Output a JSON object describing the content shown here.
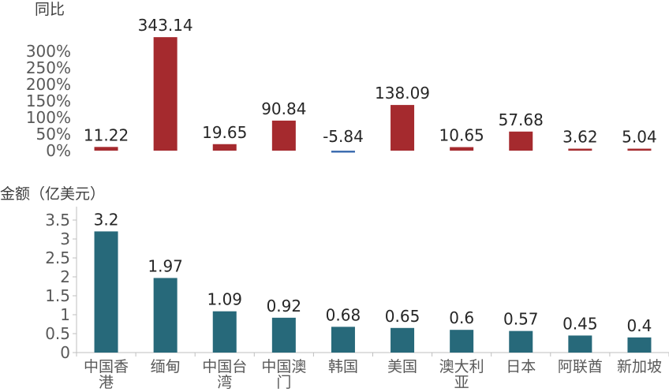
{
  "chart_data": [
    {
      "type": "bar",
      "title": "同比",
      "ylabel": "同比",
      "ylim": [
        0,
        300
      ],
      "yticks": [
        "0%",
        "50%",
        "100%",
        "150%",
        "200%",
        "250%",
        "300%"
      ],
      "ytick_values": [
        0,
        50,
        100,
        150,
        200,
        250,
        300
      ],
      "categories": [
        "中国香港",
        "缅甸",
        "中国台湾",
        "中国澳门",
        "韩国",
        "美国",
        "澳大利亚",
        "日本",
        "阿联酋",
        "新加坡"
      ],
      "values": [
        11.22,
        343.14,
        19.65,
        90.84,
        -5.84,
        138.09,
        10.65,
        57.68,
        3.62,
        5.04
      ],
      "value_labels": [
        "11.22",
        "343.14",
        "19.65",
        "90.84",
        "-5.84",
        "138.09",
        "10.65",
        "57.68",
        "3.62",
        "5.04"
      ],
      "colors": {
        "positive": "#a52a2e",
        "negative": "#3f6eb0"
      },
      "grid": false
    },
    {
      "type": "bar",
      "title": "金额（亿美元）",
      "ylabel": "金额（亿美元）",
      "ylim": [
        0,
        3.5
      ],
      "yticks": [
        "0",
        "0.5",
        "1",
        "1.5",
        "2",
        "2.5",
        "3",
        "3.5"
      ],
      "ytick_values": [
        0,
        0.5,
        1,
        1.5,
        2,
        2.5,
        3,
        3.5
      ],
      "categories": [
        "中国香港",
        "缅甸",
        "中国台湾",
        "中国澳门",
        "韩国",
        "美国",
        "澳大利亚",
        "日本",
        "阿联酋",
        "新加坡"
      ],
      "category_lines": [
        [
          "中国香",
          "港"
        ],
        [
          "缅甸"
        ],
        [
          "中国台",
          "湾"
        ],
        [
          "中国澳",
          "门"
        ],
        [
          "韩国"
        ],
        [
          "美国"
        ],
        [
          "澳大利",
          "亚"
        ],
        [
          "日本"
        ],
        [
          "阿联酋"
        ],
        [
          "新加坡"
        ]
      ],
      "values": [
        3.2,
        1.97,
        1.09,
        0.92,
        0.68,
        0.65,
        0.6,
        0.57,
        0.45,
        0.4
      ],
      "value_labels": [
        "3.2",
        "1.97",
        "1.09",
        "0.92",
        "0.68",
        "0.65",
        "0.6",
        "0.57",
        "0.45",
        "0.4"
      ],
      "colors": {
        "bar": "#27697a"
      },
      "grid": false
    }
  ]
}
